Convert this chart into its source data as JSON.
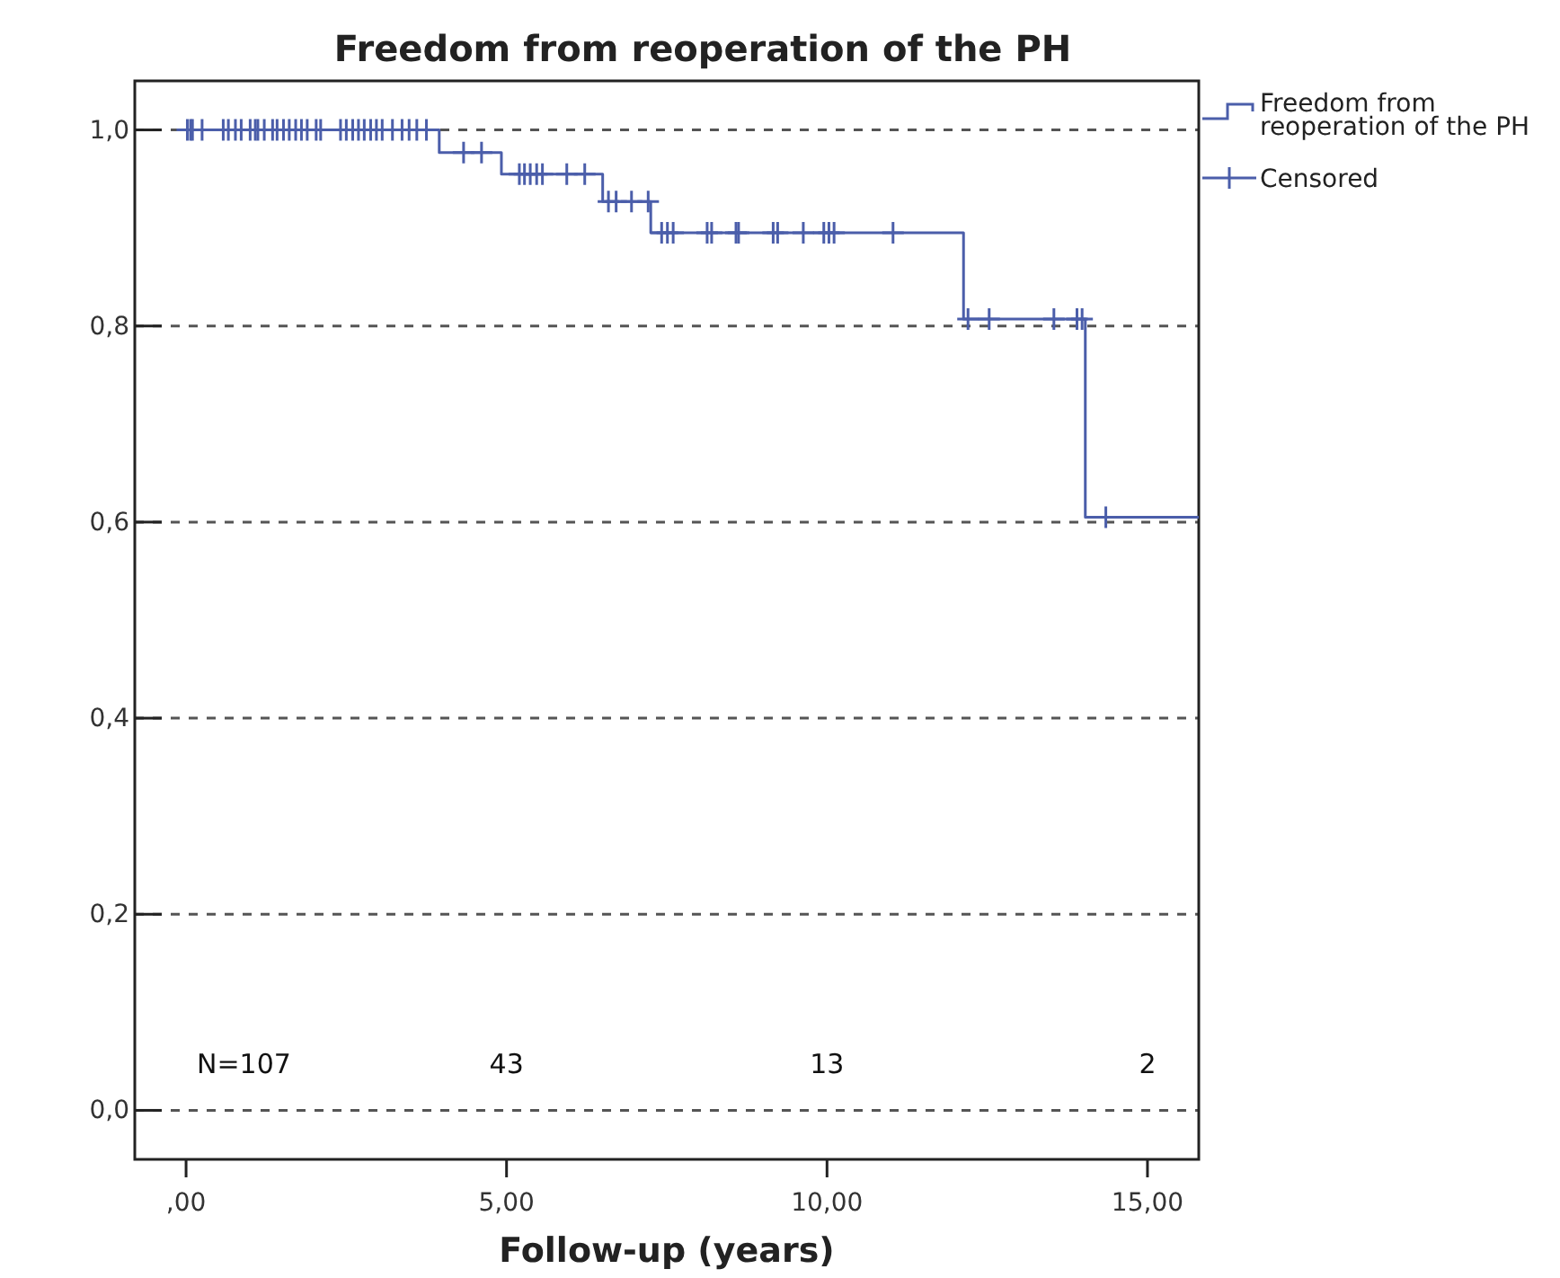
{
  "chart_data": {
    "type": "step",
    "title": "Freedom from reoperation of the PH",
    "xlabel": "Follow-up (years)",
    "xlim": [
      -0.8,
      15.8
    ],
    "ylim": [
      -0.05,
      1.05
    ],
    "xticks": [
      {
        "value": 0,
        "label": ",00"
      },
      {
        "value": 5,
        "label": "5,00"
      },
      {
        "value": 10,
        "label": "10,00"
      },
      {
        "value": 15,
        "label": "15,00"
      }
    ],
    "yticks": [
      {
        "value": 0,
        "label": "0,0"
      },
      {
        "value": 0.2,
        "label": "0,2"
      },
      {
        "value": 0.4,
        "label": "0,4"
      },
      {
        "value": 0.6,
        "label": "0,6"
      },
      {
        "value": 0.8,
        "label": "0,8"
      },
      {
        "value": 1,
        "label": "1,0"
      }
    ],
    "grid": "y",
    "legend": "top right",
    "series": [
      {
        "name": "Freedom from reoperation of the PH",
        "color": "#4b5eaa",
        "marker": "none",
        "line_style": "solid",
        "x": [
          0,
          3.95,
          4.92,
          6.5,
          7.25,
          12.13,
          14.03,
          15.8
        ],
        "values": [
          1,
          0.977,
          0.955,
          0.927,
          0.895,
          0.807,
          0.605,
          0.605
        ]
      },
      {
        "name": "Censored",
        "type": "scatter",
        "color": "#4b5eaa",
        "marker": "cross",
        "x": [
          0.02,
          0.07,
          0.1,
          0.25,
          0.58,
          0.66,
          0.77,
          0.86,
          1.0,
          1.08,
          1.12,
          1.22,
          1.35,
          1.42,
          1.52,
          1.61,
          1.71,
          1.8,
          1.89,
          2.03,
          2.1,
          2.41,
          2.5,
          2.6,
          2.69,
          2.78,
          2.88,
          2.97,
          3.06,
          3.22,
          3.37,
          3.48,
          3.6,
          3.75,
          4.33,
          4.61,
          5.2,
          5.28,
          5.37,
          5.47,
          5.56,
          5.94,
          6.22,
          6.59,
          6.71,
          6.95,
          7.21,
          7.42,
          7.51,
          7.6,
          8.13,
          8.2,
          8.58,
          8.62,
          9.16,
          9.23,
          9.63,
          9.95,
          10.03,
          10.11,
          11.03,
          12.2,
          12.53,
          13.54,
          13.9,
          13.98,
          14.35
        ],
        "values": [
          1,
          1,
          1,
          1,
          1,
          1,
          1,
          1,
          1,
          1,
          1,
          1,
          1,
          1,
          1,
          1,
          1,
          1,
          1,
          1,
          1,
          1,
          1,
          1,
          1,
          1,
          1,
          1,
          1,
          1,
          1,
          1,
          1,
          1,
          0.977,
          0.977,
          0.955,
          0.955,
          0.955,
          0.955,
          0.955,
          0.955,
          0.955,
          0.927,
          0.927,
          0.927,
          0.927,
          0.895,
          0.895,
          0.895,
          0.895,
          0.895,
          0.895,
          0.895,
          0.895,
          0.895,
          0.895,
          0.895,
          0.895,
          0.895,
          0.895,
          0.807,
          0.807,
          0.807,
          0.807,
          0.807,
          0.605
        ]
      }
    ],
    "annotations": [
      "N=107",
      "43",
      "13",
      "2"
    ]
  }
}
